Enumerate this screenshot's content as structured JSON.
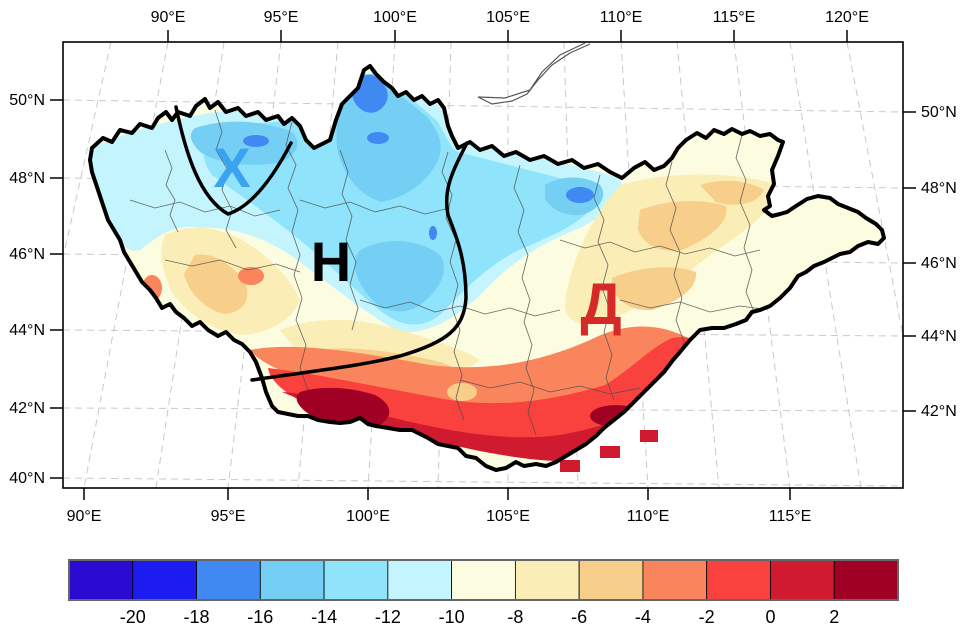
{
  "figure": {
    "annotations": [
      {
        "char": "Х",
        "color": "#3AA2EF"
      },
      {
        "char": "Н",
        "color": "#000000"
      },
      {
        "char": "Д",
        "color": "#D62A2A"
      }
    ],
    "axes": {
      "top": [
        "90°E",
        "95°E",
        "100°E",
        "105°E",
        "110°E",
        "115°E",
        "120°E"
      ],
      "bottom": [
        "90°E",
        "95°E",
        "100°E",
        "105°E",
        "110°E",
        "115°E"
      ],
      "left": [
        "50°N",
        "48°N",
        "46°N",
        "44°N",
        "42°N",
        "40°N"
      ],
      "right": [
        "50°N",
        "48°N",
        "46°N",
        "44°N",
        "42°N"
      ]
    },
    "colorbar": {
      "labels": [
        "-20",
        "-18",
        "-16",
        "-14",
        "-12",
        "-10",
        "-8",
        "-6",
        "-4",
        "-2",
        "0",
        "2"
      ],
      "colors": [
        "#2B0BD2",
        "#1C1CF0",
        "#4189F2",
        "#75CFF4",
        "#8FE3FA",
        "#C4F5FE",
        "#FCFCE0",
        "#FAEDB5",
        "#F8CE8B",
        "#FA855C",
        "#F9413E",
        "#D01A30",
        "#A00024"
      ]
    },
    "map_features": {
      "country_outline": "mongolia-border",
      "lake_outline": "baikal-south-tip",
      "fronts": [
        "cold-pocket-loop",
        "warm-cold-divide"
      ]
    }
  }
}
